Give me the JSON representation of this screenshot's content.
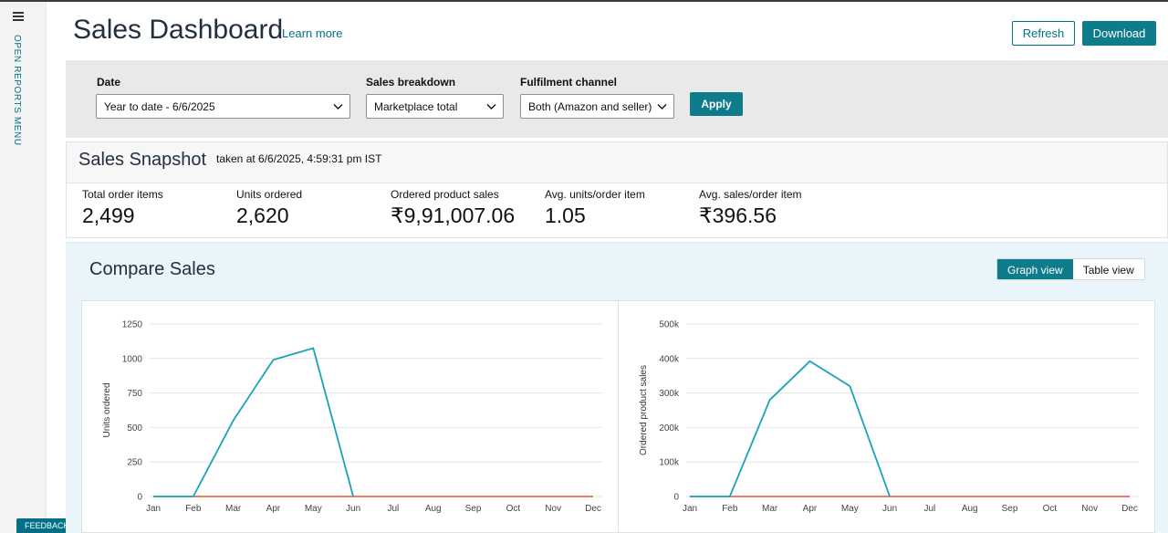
{
  "rail": {
    "menu_label": "OPEN REPORTS MENU",
    "feedback_label": "FEEDBACK",
    "feedback_close": "×"
  },
  "header": {
    "title": "Sales Dashboard",
    "learn_more": "Learn more",
    "refresh_label": "Refresh",
    "download_label": "Download"
  },
  "filters": {
    "date_label": "Date",
    "date_value": "Year to date - 6/6/2025",
    "breakdown_label": "Sales breakdown",
    "breakdown_value": "Marketplace total",
    "channel_label": "Fulfilment channel",
    "channel_value": "Both (Amazon and seller)",
    "apply_label": "Apply"
  },
  "snapshot": {
    "title": "Sales Snapshot",
    "taken_at": "taken at 6/6/2025, 4:59:31 pm IST",
    "metrics": [
      {
        "label": "Total order items",
        "value": "2,499"
      },
      {
        "label": "Units ordered",
        "value": "2,620"
      },
      {
        "label": "Ordered product sales",
        "value": "₹9,91,007.06"
      },
      {
        "label": "Avg. units/order item",
        "value": "1.05"
      },
      {
        "label": "Avg. sales/order item",
        "value": "₹396.56"
      }
    ]
  },
  "compare": {
    "title": "Compare Sales",
    "graph_view_label": "Graph view",
    "table_view_label": "Table view"
  },
  "colors": {
    "accent": "#0e7c8b",
    "series_current": "#1aa3b5",
    "series_baseline": "#e2562c"
  },
  "chart_data": [
    {
      "type": "line",
      "ylabel": "Units ordered",
      "categories": [
        "Jan",
        "Feb",
        "Mar",
        "Apr",
        "May",
        "Jun",
        "Jul",
        "Aug",
        "Sep",
        "Oct",
        "Nov",
        "Dec"
      ],
      "yticks": [
        "0",
        "250",
        "500",
        "750",
        "1000",
        "1250"
      ],
      "ylim": [
        0,
        1250
      ],
      "grid": true,
      "series": [
        {
          "values": [
            0,
            0,
            550,
            990,
            1075,
            0,
            null,
            null,
            null,
            null,
            null,
            null
          ]
        },
        {
          "values": [
            0,
            0,
            0,
            0,
            0,
            0,
            0,
            0,
            0,
            0,
            0,
            0
          ]
        }
      ]
    },
    {
      "type": "line",
      "ylabel": "Ordered product sales",
      "categories": [
        "Jan",
        "Feb",
        "Mar",
        "Apr",
        "May",
        "Jun",
        "Jul",
        "Aug",
        "Sep",
        "Oct",
        "Nov",
        "Dec"
      ],
      "yticks": [
        "0",
        "100k",
        "200k",
        "300k",
        "400k",
        "500k"
      ],
      "ylim": [
        0,
        500000
      ],
      "grid": true,
      "series": [
        {
          "values": [
            0,
            0,
            280000,
            392000,
            320000,
            0,
            null,
            null,
            null,
            null,
            null,
            null
          ]
        },
        {
          "values": [
            0,
            0,
            0,
            0,
            0,
            0,
            0,
            0,
            0,
            0,
            0,
            0
          ]
        }
      ]
    }
  ]
}
